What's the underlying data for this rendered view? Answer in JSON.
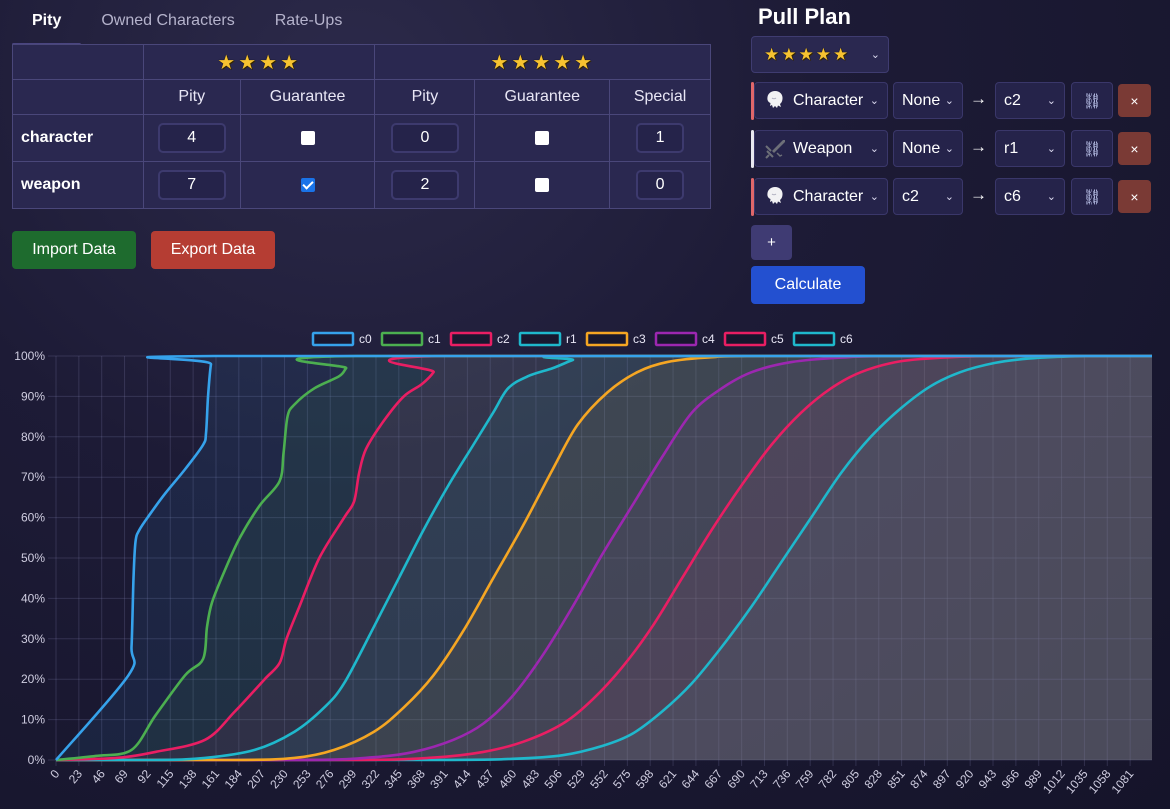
{
  "tabs": [
    {
      "label": "Pity",
      "active": true
    },
    {
      "label": "Owned Characters",
      "active": false
    },
    {
      "label": "Rate-Ups",
      "active": false
    }
  ],
  "pity_table": {
    "four_star_label": "★★★★",
    "five_star_label": "★★★★★",
    "columns": [
      "Pity",
      "Guarantee",
      "Pity",
      "Guarantee",
      "Special"
    ],
    "rows": [
      {
        "label": "character",
        "four_pity": "4",
        "four_guarantee": false,
        "five_pity": "0",
        "five_guarantee": false,
        "special": "1"
      },
      {
        "label": "weapon",
        "four_pity": "7",
        "four_guarantee": true,
        "five_pity": "2",
        "five_guarantee": false,
        "special": "0"
      }
    ]
  },
  "buttons": {
    "import": "Import Data",
    "export": "Export Data",
    "add": "+",
    "calculate": "Calculate"
  },
  "pull_plan": {
    "title": "Pull Plan",
    "rarity": "★★★★★",
    "arrow": "→",
    "link_icon": "⛓",
    "delete_icon": "×",
    "rows": [
      {
        "type": "Character",
        "icon": "character-portrait-icon",
        "from": "None",
        "to": "c2",
        "accent": "#e0676a"
      },
      {
        "type": "Weapon",
        "icon": "weapon-sword-icon",
        "from": "None",
        "to": "r1",
        "accent": "#e8e8f0"
      },
      {
        "type": "Character",
        "icon": "character-portrait-icon",
        "from": "c2",
        "to": "c6",
        "accent": "#e0676a"
      }
    ]
  },
  "chart_data": {
    "type": "area",
    "title": "",
    "xlabel": "",
    "ylabel": "",
    "xlim": [
      0,
      1103
    ],
    "ylim": [
      0,
      100
    ],
    "x_ticks": [
      0,
      23,
      46,
      69,
      92,
      115,
      138,
      161,
      184,
      207,
      230,
      253,
      276,
      299,
      322,
      345,
      368,
      391,
      414,
      437,
      460,
      483,
      506,
      529,
      552,
      575,
      598,
      621,
      644,
      667,
      690,
      713,
      736,
      759,
      782,
      805,
      828,
      851,
      874,
      897,
      920,
      943,
      966,
      989,
      1012,
      1035,
      1058,
      1081
    ],
    "y_ticks": [
      "0%",
      "10%",
      "20%",
      "30%",
      "40%",
      "50%",
      "60%",
      "70%",
      "80%",
      "90%",
      "100%"
    ],
    "grid": true,
    "legend_position": "top",
    "series": [
      {
        "name": "c0",
        "color": "#36a2eb",
        "points": [
          [
            0,
            0
          ],
          [
            73,
            21
          ],
          [
            76,
            28
          ],
          [
            78,
            45
          ],
          [
            80,
            54
          ],
          [
            84,
            57
          ],
          [
            95,
            61
          ],
          [
            110,
            66
          ],
          [
            130,
            72
          ],
          [
            148,
            78
          ],
          [
            151,
            81
          ],
          [
            153,
            90
          ],
          [
            156,
            98
          ],
          [
            160,
            100
          ],
          [
            1103,
            100
          ]
        ]
      },
      {
        "name": "c1",
        "color": "#4caf50",
        "points": [
          [
            0,
            0
          ],
          [
            40,
            1
          ],
          [
            76,
            2.5
          ],
          [
            100,
            11
          ],
          [
            130,
            21
          ],
          [
            148,
            25
          ],
          [
            152,
            33
          ],
          [
            157,
            39
          ],
          [
            170,
            47
          ],
          [
            185,
            55
          ],
          [
            205,
            63
          ],
          [
            225,
            69
          ],
          [
            229,
            76
          ],
          [
            233,
            85
          ],
          [
            240,
            88
          ],
          [
            260,
            92
          ],
          [
            285,
            95
          ],
          [
            292,
            97
          ],
          [
            302,
            100
          ],
          [
            1103,
            100
          ]
        ]
      },
      {
        "name": "c2",
        "color": "#e91e63",
        "points": [
          [
            0,
            0
          ],
          [
            60,
            0.5
          ],
          [
            100,
            2
          ],
          [
            150,
            5
          ],
          [
            180,
            12
          ],
          [
            210,
            20
          ],
          [
            225,
            24
          ],
          [
            232,
            30
          ],
          [
            245,
            38
          ],
          [
            265,
            50
          ],
          [
            290,
            60
          ],
          [
            300,
            64
          ],
          [
            305,
            71
          ],
          [
            312,
            77
          ],
          [
            330,
            84
          ],
          [
            350,
            90
          ],
          [
            368,
            93
          ],
          [
            380,
            96
          ],
          [
            388,
            100
          ],
          [
            1103,
            100
          ]
        ]
      },
      {
        "name": "r1",
        "color": "#1fb8cc",
        "points": [
          [
            100,
            0
          ],
          [
            150,
            0.5
          ],
          [
            200,
            2.5
          ],
          [
            240,
            7
          ],
          [
            270,
            13
          ],
          [
            290,
            19
          ],
          [
            320,
            33
          ],
          [
            345,
            45
          ],
          [
            370,
            57
          ],
          [
            395,
            68
          ],
          [
            420,
            78
          ],
          [
            440,
            86
          ],
          [
            455,
            92
          ],
          [
            475,
            95
          ],
          [
            500,
            97
          ],
          [
            520,
            99
          ],
          [
            535,
            100
          ],
          [
            1103,
            100
          ]
        ]
      },
      {
        "name": "c3",
        "color": "#f5a623",
        "points": [
          [
            180,
            0
          ],
          [
            240,
            0.5
          ],
          [
            280,
            2.5
          ],
          [
            320,
            7
          ],
          [
            350,
            13
          ],
          [
            380,
            21
          ],
          [
            410,
            32
          ],
          [
            440,
            45
          ],
          [
            470,
            58
          ],
          [
            500,
            72
          ],
          [
            525,
            83
          ],
          [
            555,
            91
          ],
          [
            585,
            96
          ],
          [
            615,
            98.5
          ],
          [
            660,
            99.7
          ],
          [
            720,
            100
          ],
          [
            1103,
            100
          ]
        ]
      },
      {
        "name": "c4",
        "color": "#9c27b0",
        "points": [
          [
            250,
            0
          ],
          [
            320,
            0.7
          ],
          [
            360,
            2
          ],
          [
            400,
            5
          ],
          [
            430,
            9
          ],
          [
            460,
            16
          ],
          [
            490,
            26
          ],
          [
            520,
            38
          ],
          [
            550,
            51
          ],
          [
            580,
            63
          ],
          [
            610,
            75
          ],
          [
            640,
            86
          ],
          [
            670,
            92
          ],
          [
            700,
            96
          ],
          [
            740,
            98.5
          ],
          [
            790,
            99.6
          ],
          [
            850,
            100
          ],
          [
            1103,
            100
          ]
        ]
      },
      {
        "name": "c5",
        "color": "#e91e63",
        "points": [
          [
            300,
            0
          ],
          [
            380,
            0.6
          ],
          [
            430,
            2
          ],
          [
            470,
            4.5
          ],
          [
            510,
            9
          ],
          [
            540,
            15
          ],
          [
            570,
            23
          ],
          [
            600,
            33
          ],
          [
            630,
            45
          ],
          [
            660,
            57
          ],
          [
            690,
            68
          ],
          [
            720,
            78
          ],
          [
            750,
            86
          ],
          [
            780,
            92
          ],
          [
            810,
            96
          ],
          [
            850,
            98.7
          ],
          [
            900,
            99.7
          ],
          [
            960,
            100
          ],
          [
            1103,
            100
          ]
        ]
      },
      {
        "name": "c6",
        "color": "#1fb8cc",
        "points": [
          [
            380,
            0
          ],
          [
            460,
            0.3
          ],
          [
            510,
            1.2
          ],
          [
            550,
            3.5
          ],
          [
            580,
            6.5
          ],
          [
            610,
            12
          ],
          [
            640,
            19
          ],
          [
            670,
            28
          ],
          [
            700,
            38
          ],
          [
            730,
            49
          ],
          [
            760,
            60
          ],
          [
            790,
            71
          ],
          [
            820,
            80
          ],
          [
            850,
            87
          ],
          [
            880,
            92.5
          ],
          [
            910,
            96
          ],
          [
            945,
            98.3
          ],
          [
            980,
            99.4
          ],
          [
            1020,
            99.9
          ],
          [
            1060,
            100
          ],
          [
            1103,
            100
          ]
        ]
      }
    ]
  }
}
